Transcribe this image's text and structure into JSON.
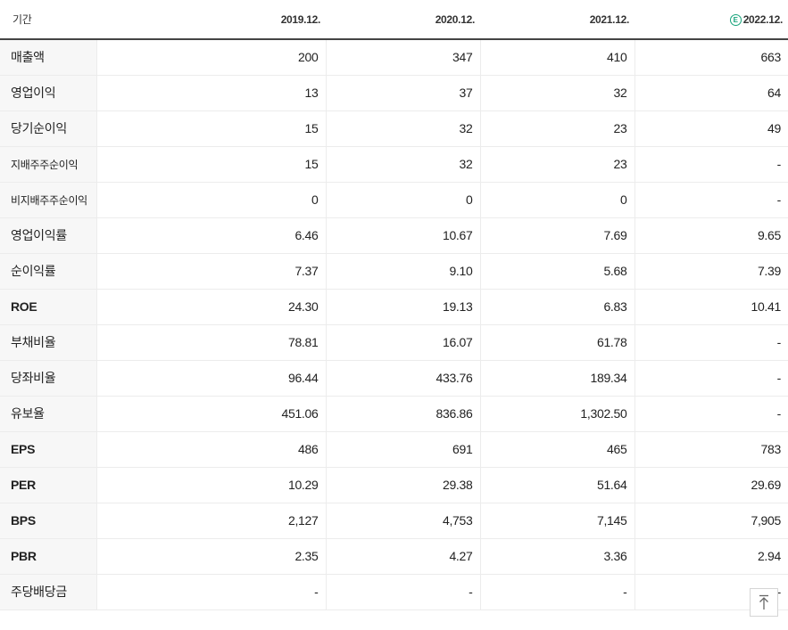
{
  "header": {
    "label": "기간",
    "estimate_mark": "E",
    "periods": [
      "2019.12.",
      "2020.12.",
      "2021.12.",
      "2022.12."
    ]
  },
  "rows": [
    {
      "label": "매출액",
      "values": [
        "200",
        "347",
        "410",
        "663"
      ]
    },
    {
      "label": "영업이익",
      "values": [
        "13",
        "37",
        "32",
        "64"
      ]
    },
    {
      "label": "당기순이익",
      "values": [
        "15",
        "32",
        "23",
        "49"
      ]
    },
    {
      "label": "지배주주순이익",
      "values": [
        "15",
        "32",
        "23",
        "-"
      ]
    },
    {
      "label": "비지배주주순이익",
      "values": [
        "0",
        "0",
        "0",
        "-"
      ]
    },
    {
      "label": "영업이익률",
      "values": [
        "6.46",
        "10.67",
        "7.69",
        "9.65"
      ]
    },
    {
      "label": "순이익률",
      "values": [
        "7.37",
        "9.10",
        "5.68",
        "7.39"
      ]
    },
    {
      "label": "ROE",
      "values": [
        "24.30",
        "19.13",
        "6.83",
        "10.41"
      ]
    },
    {
      "label": "부채비율",
      "values": [
        "78.81",
        "16.07",
        "61.78",
        "-"
      ]
    },
    {
      "label": "당좌비율",
      "values": [
        "96.44",
        "433.76",
        "189.34",
        "-"
      ]
    },
    {
      "label": "유보율",
      "values": [
        "451.06",
        "836.86",
        "1,302.50",
        "-"
      ]
    },
    {
      "label": "EPS",
      "values": [
        "486",
        "691",
        "465",
        "783"
      ]
    },
    {
      "label": "PER",
      "values": [
        "10.29",
        "29.38",
        "51.64",
        "29.69"
      ]
    },
    {
      "label": "BPS",
      "values": [
        "2,127",
        "4,753",
        "7,145",
        "7,905"
      ]
    },
    {
      "label": "PBR",
      "values": [
        "2.35",
        "4.27",
        "3.36",
        "2.94"
      ]
    },
    {
      "label": "주당배당금",
      "values": [
        "-",
        "-",
        "-",
        "-"
      ]
    }
  ],
  "scroll_top": {
    "icon": "arrow-up-icon"
  }
}
